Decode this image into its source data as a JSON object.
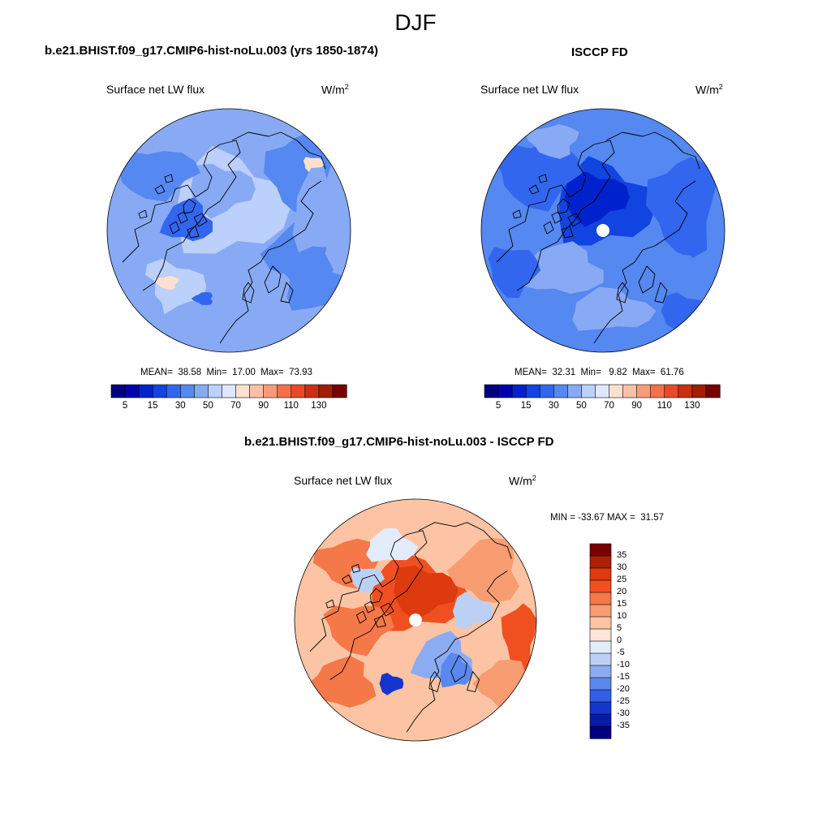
{
  "figure": {
    "season": "DJF"
  },
  "panels": [
    {
      "title": "b.e21.BHIST.f09_g17.CMIP6-hist-noLu.003 (yrs 1850-1874)",
      "variable": "Surface net LW flux",
      "units": "W/m",
      "units_sup": "2",
      "stats": "MEAN=  38.58  Min=  17.00  Max=  73.93",
      "mean": 38.58,
      "min": 17.0,
      "max": 73.93,
      "pole_missing": false
    },
    {
      "title": "ISCCP FD",
      "variable": "Surface net LW flux",
      "units": "W/m",
      "units_sup": "2",
      "stats": "MEAN=  32.31  Min=   9.82  Max=  61.76",
      "mean": 32.31,
      "min": 9.82,
      "max": 61.76,
      "pole_missing": true
    },
    {
      "title": "b.e21.BHIST.f09_g17.CMIP6-hist-noLu.003 - ISCCP FD",
      "variable": "Surface net LW flux",
      "units": "W/m",
      "units_sup": "2",
      "stats": "MIN = -33.67 MAX =  31.57",
      "min": -33.67,
      "max": 31.57,
      "pole_missing": true
    }
  ],
  "colorbar_abs": {
    "tick_labels": [
      "5",
      "15",
      "30",
      "50",
      "70",
      "90",
      "110",
      "130"
    ],
    "colors": [
      "#000080",
      "#0000b0",
      "#0022cc",
      "#1144e0",
      "#3366ee",
      "#5588f0",
      "#88aaf5",
      "#bbd0fa",
      "#dde8fc",
      "#fde0d0",
      "#fcc0a8",
      "#fa9a78",
      "#f57048",
      "#e84a26",
      "#c8300e",
      "#a01e06",
      "#780000"
    ]
  },
  "colorbar_diff": {
    "labels": [
      "35",
      "30",
      "25",
      "20",
      "15",
      "10",
      "5",
      "0",
      "-5",
      "-10",
      "-15",
      "-20",
      "-25",
      "-30",
      "-35"
    ],
    "colors": [
      "#780000",
      "#b01e04",
      "#dd3a10",
      "#f05020",
      "#f57848",
      "#f89c72",
      "#fcc4a4",
      "#fde6d8",
      "#e2ecfb",
      "#bcd0f6",
      "#8cacf2",
      "#5a88ee",
      "#2f60e6",
      "#1436cc",
      "#0a1aa8",
      "#000080"
    ]
  },
  "colors": {
    "land_outline": "#000000",
    "ocean_light": "#9cbcf0",
    "missing": "#ffffff"
  }
}
